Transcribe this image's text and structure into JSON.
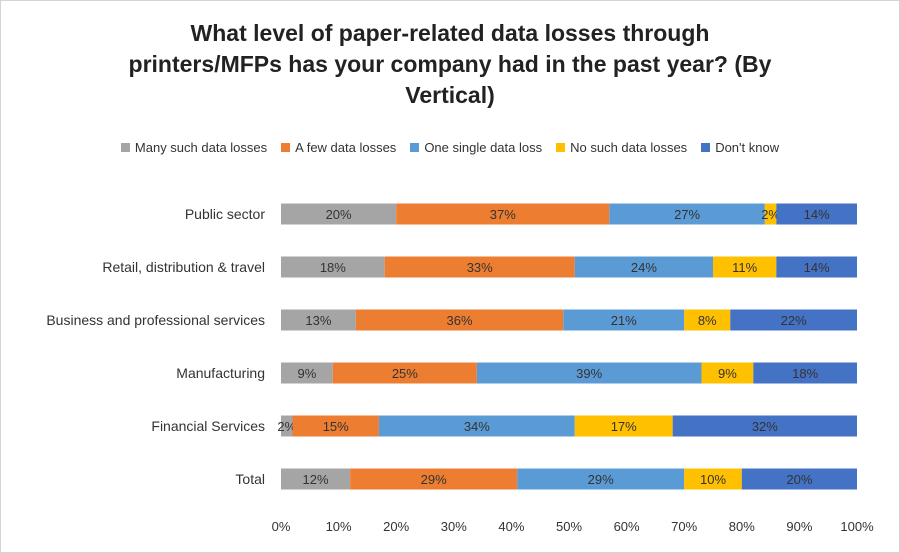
{
  "chart_data": {
    "type": "bar",
    "orientation": "horizontal",
    "stacked": true,
    "title": "What level of paper-related data losses through printers/MFPs has your company had in the past year? (By Vertical)",
    "categories": [
      "Public sector",
      "Retail, distribution & travel",
      "Business and professional services",
      "Manufacturing",
      "Financial Services",
      "Total"
    ],
    "series": [
      {
        "name": "Many such data losses",
        "color": "#a5a5a5",
        "values": [
          20,
          18,
          13,
          9,
          2,
          12
        ]
      },
      {
        "name": "A few data losses",
        "color": "#ed7d31",
        "values": [
          37,
          33,
          36,
          25,
          15,
          29
        ]
      },
      {
        "name": "One single data loss",
        "color": "#5b9bd5",
        "values": [
          27,
          24,
          21,
          39,
          34,
          29
        ]
      },
      {
        "name": "No such data losses",
        "color": "#ffc000",
        "values": [
          2,
          11,
          8,
          9,
          17,
          10
        ]
      },
      {
        "name": "Don't know",
        "color": "#4472c4",
        "values": [
          14,
          14,
          22,
          18,
          32,
          20
        ]
      }
    ],
    "x_ticks": [
      "0%",
      "10%",
      "20%",
      "30%",
      "40%",
      "50%",
      "60%",
      "70%",
      "80%",
      "90%",
      "100%"
    ],
    "xlim": [
      0,
      100
    ],
    "grid": false,
    "legend_position": "top"
  }
}
